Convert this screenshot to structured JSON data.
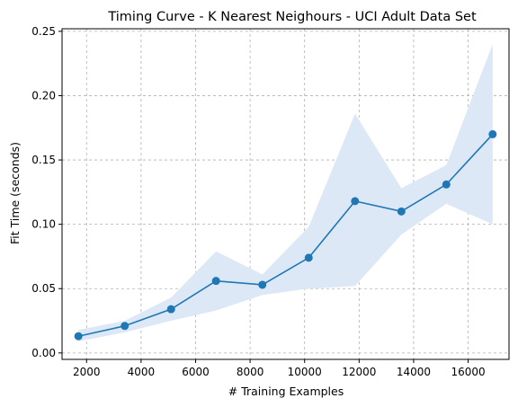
{
  "chart_data": {
    "type": "line",
    "title": "Timing Curve - K Nearest Neighours - UCI Adult Data Set",
    "xlabel": "# Training Examples",
    "ylabel": "Fit Time (seconds)",
    "xlim": [
      1100,
      17500
    ],
    "ylim": [
      -0.005,
      0.252
    ],
    "x_ticks": [
      2000,
      4000,
      6000,
      8000,
      10000,
      12000,
      14000,
      16000
    ],
    "x_tick_labels": [
      "2000",
      "4000",
      "6000",
      "8000",
      "10000",
      "12000",
      "14000",
      "16000"
    ],
    "y_ticks": [
      0.0,
      0.05,
      0.1,
      0.15,
      0.2,
      0.25
    ],
    "y_tick_labels": [
      "0.00",
      "0.05",
      "0.10",
      "0.15",
      "0.20",
      "0.25"
    ],
    "grid": true,
    "line_color": "#1f77b4",
    "band_color": "#dce8f5",
    "series": [
      {
        "x": [
          1700,
          3400,
          5100,
          6750,
          8450,
          10150,
          11850,
          13550,
          15200,
          16900
        ],
        "values": [
          0.013,
          0.021,
          0.034,
          0.056,
          0.053,
          0.074,
          0.118,
          0.11,
          0.131,
          0.17
        ],
        "lower": [
          0.009,
          0.016,
          0.025,
          0.033,
          0.045,
          0.05,
          0.052,
          0.092,
          0.116,
          0.1
        ],
        "upper": [
          0.018,
          0.025,
          0.043,
          0.079,
          0.061,
          0.098,
          0.186,
          0.128,
          0.146,
          0.24
        ]
      }
    ]
  }
}
